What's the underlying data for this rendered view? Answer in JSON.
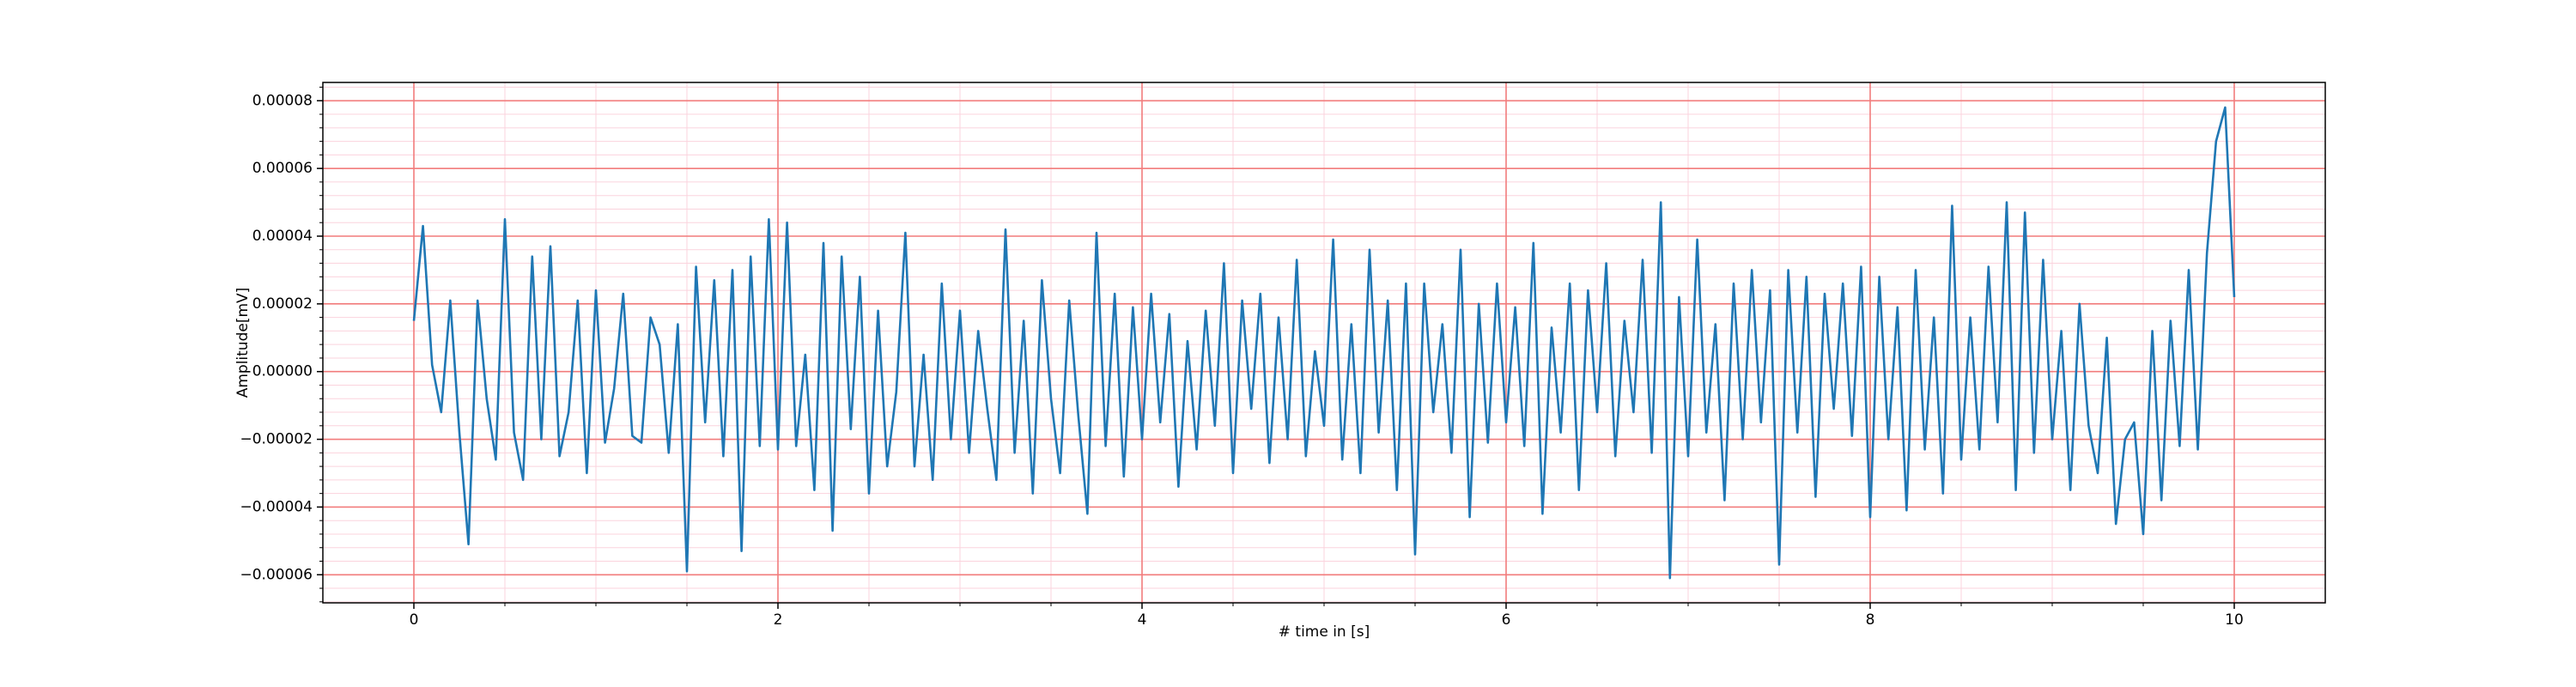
{
  "chart_data": {
    "type": "line",
    "xlabel": "# time in [s]",
    "ylabel": "Amplitude[mV]",
    "x": [
      0,
      0.05,
      0.1,
      0.15,
      0.2,
      0.25,
      0.3,
      0.35,
      0.4,
      0.45,
      0.5,
      0.55,
      0.6,
      0.65,
      0.7,
      0.75,
      0.8,
      0.85,
      0.9,
      0.95,
      1,
      1.05,
      1.1,
      1.15,
      1.2,
      1.25,
      1.3,
      1.35,
      1.4,
      1.45,
      1.5,
      1.55,
      1.6,
      1.65,
      1.7,
      1.75,
      1.8,
      1.85,
      1.9,
      1.95,
      2,
      2.05,
      2.1,
      2.15,
      2.2,
      2.25,
      2.3,
      2.35,
      2.4,
      2.45,
      2.5,
      2.55,
      2.6,
      2.65,
      2.7,
      2.75,
      2.8,
      2.85,
      2.9,
      2.95,
      3,
      3.05,
      3.1,
      3.15,
      3.2,
      3.25,
      3.3,
      3.35,
      3.4,
      3.45,
      3.5,
      3.55,
      3.6,
      3.65,
      3.7,
      3.75,
      3.8,
      3.85,
      3.9,
      3.95,
      4,
      4.05,
      4.1,
      4.15,
      4.2,
      4.25,
      4.3,
      4.35,
      4.4,
      4.45,
      4.5,
      4.55,
      4.6,
      4.65,
      4.7,
      4.75,
      4.8,
      4.85,
      4.9,
      4.95,
      5,
      5.05,
      5.1,
      5.15,
      5.2,
      5.25,
      5.3,
      5.35,
      5.4,
      5.45,
      5.5,
      5.55,
      5.6,
      5.65,
      5.7,
      5.75,
      5.8,
      5.85,
      5.9,
      5.95,
      6,
      6.05,
      6.1,
      6.15,
      6.2,
      6.25,
      6.3,
      6.35,
      6.4,
      6.45,
      6.5,
      6.55,
      6.6,
      6.65,
      6.7,
      6.75,
      6.8,
      6.85,
      6.9,
      6.95,
      7,
      7.05,
      7.1,
      7.15,
      7.2,
      7.25,
      7.3,
      7.35,
      7.4,
      7.45,
      7.5,
      7.55,
      7.6,
      7.65,
      7.7,
      7.75,
      7.8,
      7.85,
      7.9,
      7.95,
      8,
      8.05,
      8.1,
      8.15,
      8.2,
      8.25,
      8.3,
      8.35,
      8.4,
      8.45,
      8.5,
      8.55,
      8.6,
      8.65,
      8.7,
      8.75,
      8.8,
      8.85,
      8.9,
      8.95,
      9,
      9.05,
      9.1,
      9.15,
      9.2,
      9.25,
      9.3,
      9.35,
      9.4,
      9.45,
      9.5,
      9.55,
      9.6,
      9.65,
      9.7,
      9.75,
      9.8,
      9.85,
      9.9,
      9.95,
      10
    ],
    "series": [
      {
        "color": "#1f77b4",
        "values": [
          1.5e-05,
          4.3e-05,
          2e-06,
          -1.2e-05,
          2.1e-05,
          -1.8e-05,
          -5.1e-05,
          2.1e-05,
          -8e-06,
          -2.6e-05,
          4.5e-05,
          -1.8e-05,
          -3.2e-05,
          3.4e-05,
          -2e-05,
          3.7e-05,
          -2.5e-05,
          -1.2e-05,
          2.1e-05,
          -3e-05,
          2.4e-05,
          -2.1e-05,
          -5e-06,
          2.3e-05,
          -1.9e-05,
          -2.1e-05,
          1.6e-05,
          8e-06,
          -2.4e-05,
          1.4e-05,
          -5.9e-05,
          3.1e-05,
          -1.5e-05,
          2.7e-05,
          -2.5e-05,
          3e-05,
          -5.3e-05,
          3.4e-05,
          -2.2e-05,
          4.5e-05,
          -2.3e-05,
          4.4e-05,
          -2.2e-05,
          5e-06,
          -3.5e-05,
          3.8e-05,
          -4.7e-05,
          3.4e-05,
          -1.7e-05,
          2.8e-05,
          -3.6e-05,
          1.8e-05,
          -2.8e-05,
          -6e-06,
          4.1e-05,
          -2.8e-05,
          5e-06,
          -3.2e-05,
          2.6e-05,
          -2e-05,
          1.8e-05,
          -2.4e-05,
          1.2e-05,
          -1.1e-05,
          -3.2e-05,
          4.2e-05,
          -2.4e-05,
          1.5e-05,
          -3.6e-05,
          2.7e-05,
          -8e-06,
          -3e-05,
          2.1e-05,
          -1.3e-05,
          -4.2e-05,
          4.1e-05,
          -2.2e-05,
          2.3e-05,
          -3.1e-05,
          1.9e-05,
          -2e-05,
          2.3e-05,
          -1.5e-05,
          1.7e-05,
          -3.4e-05,
          9e-06,
          -2.3e-05,
          1.8e-05,
          -1.6e-05,
          3.2e-05,
          -3e-05,
          2.1e-05,
          -1.1e-05,
          2.3e-05,
          -2.7e-05,
          1.6e-05,
          -2e-05,
          3.3e-05,
          -2.5e-05,
          6e-06,
          -1.6e-05,
          3.9e-05,
          -2.6e-05,
          1.4e-05,
          -3e-05,
          3.6e-05,
          -1.8e-05,
          2.1e-05,
          -3.5e-05,
          2.6e-05,
          -5.4e-05,
          2.6e-05,
          -1.2e-05,
          1.4e-05,
          -2.4e-05,
          3.6e-05,
          -4.3e-05,
          2e-05,
          -2.1e-05,
          2.6e-05,
          -1.5e-05,
          1.9e-05,
          -2.2e-05,
          3.8e-05,
          -4.2e-05,
          1.3e-05,
          -1.8e-05,
          2.6e-05,
          -3.5e-05,
          2.4e-05,
          -1.2e-05,
          3.2e-05,
          -2.5e-05,
          1.5e-05,
          -1.2e-05,
          3.3e-05,
          -2.4e-05,
          5e-05,
          -6.1e-05,
          2.2e-05,
          -2.5e-05,
          3.9e-05,
          -1.8e-05,
          1.4e-05,
          -3.8e-05,
          2.6e-05,
          -2e-05,
          3e-05,
          -1.5e-05,
          2.4e-05,
          -5.7e-05,
          3e-05,
          -1.8e-05,
          2.8e-05,
          -3.7e-05,
          2.3e-05,
          -1.1e-05,
          2.6e-05,
          -1.9e-05,
          3.1e-05,
          -4.3e-05,
          2.8e-05,
          -2e-05,
          1.9e-05,
          -4.1e-05,
          3e-05,
          -2.3e-05,
          1.6e-05,
          -3.6e-05,
          4.9e-05,
          -2.6e-05,
          1.6e-05,
          -2.3e-05,
          3.1e-05,
          -1.5e-05,
          5e-05,
          -3.5e-05,
          4.7e-05,
          -2.4e-05,
          3.3e-05,
          -2e-05,
          1.2e-05,
          -3.5e-05,
          2e-05,
          -1.6e-05,
          -3e-05,
          1e-05,
          -4.5e-05,
          -2e-05,
          -1.5e-05,
          -4.8e-05,
          1.2e-05,
          -3.8e-05,
          1.5e-05,
          -2.2e-05,
          3e-05,
          -2.3e-05,
          3.5e-05,
          6.8e-05,
          7.8e-05,
          2.2e-05
        ]
      }
    ],
    "xlim": [
      -0.5,
      10.5
    ],
    "xticks": [
      0,
      2,
      4,
      6,
      8,
      10
    ],
    "xminorticks": [
      0.5,
      1,
      1.5,
      2.5,
      3,
      3.5,
      4.5,
      5,
      5.5,
      6.5,
      7,
      7.5,
      8.5,
      9,
      9.5
    ],
    "ylim": [
      -6.83e-05,
      8.54e-05
    ],
    "yticks": [
      {
        "value": -6e-05,
        "label": "−0.00006"
      },
      {
        "value": -4e-05,
        "label": "−0.00004"
      },
      {
        "value": -2e-05,
        "label": "−0.00002"
      },
      {
        "value": 0,
        "label": "0.00000"
      },
      {
        "value": 2e-05,
        "label": "0.00002"
      },
      {
        "value": 4e-05,
        "label": "0.00004"
      },
      {
        "value": 6e-05,
        "label": "0.00006"
      },
      {
        "value": 8e-05,
        "label": "0.00008"
      }
    ],
    "yminorticks": [
      -6.8e-05,
      -6.4e-05,
      -5.6e-05,
      -5.2e-05,
      -4.8e-05,
      -4.4e-05,
      -3.6e-05,
      -3.2e-05,
      -2.8e-05,
      -2.4e-05,
      -1.6e-05,
      -1.2e-05,
      -8e-06,
      -4e-06,
      4e-06,
      8e-06,
      1.2e-05,
      1.6e-05,
      2.4e-05,
      2.8e-05,
      3.2e-05,
      3.6e-05,
      4.4e-05,
      4.8e-05,
      5.2e-05,
      5.6e-05,
      6.4e-05,
      6.8e-05,
      7.2e-05,
      7.6e-05,
      8.4e-05
    ],
    "grid": true,
    "grid_color": "#f27c7c",
    "minor_grid": true,
    "minor_grid_color": "#fbd3dd"
  }
}
